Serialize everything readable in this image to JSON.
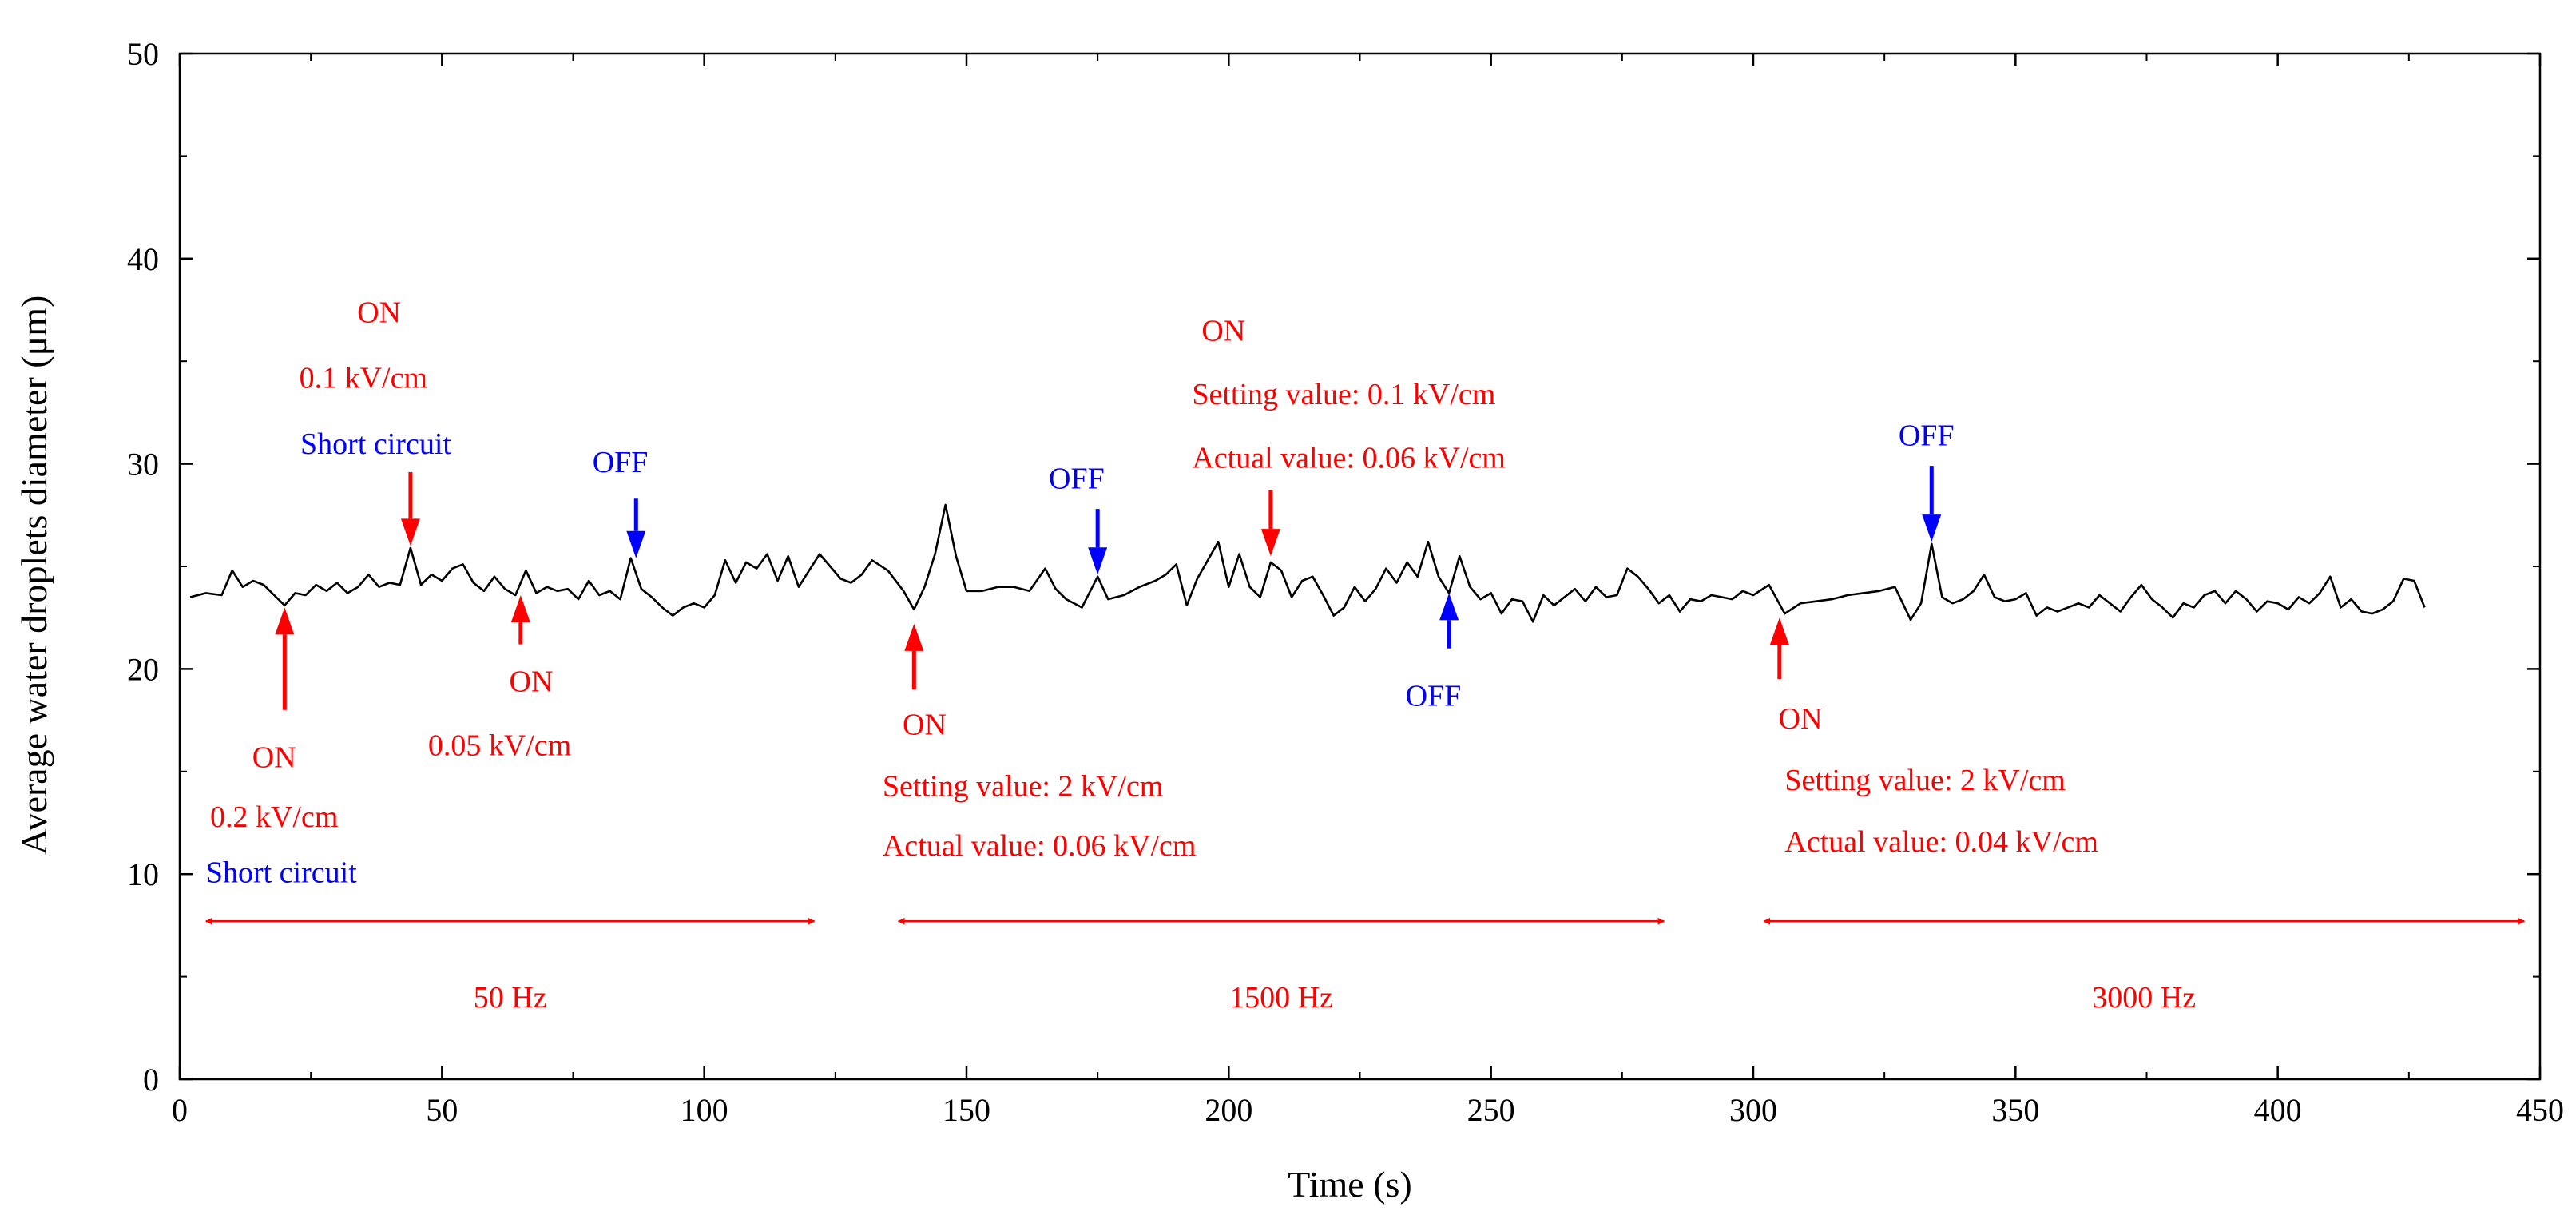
{
  "chart_data": {
    "type": "line",
    "title": "",
    "xlabel": "Time (s)",
    "ylabel": "Average water droplets diameter (μm)",
    "xlim": [
      0,
      450
    ],
    "ylim": [
      0,
      50
    ],
    "xticks": [
      0,
      50,
      100,
      150,
      200,
      250,
      300,
      350,
      400,
      450
    ],
    "yticks": [
      0,
      10,
      20,
      30,
      40,
      50
    ],
    "grid": false,
    "series": [
      {
        "name": "Average water droplets diameter",
        "color": "#000000",
        "points": [
          [
            2,
            23.5
          ],
          [
            5,
            23.7
          ],
          [
            8,
            23.6
          ],
          [
            10,
            24.8
          ],
          [
            12,
            24.0
          ],
          [
            14,
            24.3
          ],
          [
            16,
            24.1
          ],
          [
            18,
            23.6
          ],
          [
            20,
            23.1
          ],
          [
            22,
            23.7
          ],
          [
            24,
            23.6
          ],
          [
            26,
            24.1
          ],
          [
            28,
            23.8
          ],
          [
            30,
            24.2
          ],
          [
            32,
            23.7
          ],
          [
            34,
            24.0
          ],
          [
            36,
            24.6
          ],
          [
            38,
            24.0
          ],
          [
            40,
            24.2
          ],
          [
            42,
            24.1
          ],
          [
            44,
            25.9
          ],
          [
            46,
            24.1
          ],
          [
            48,
            24.6
          ],
          [
            50,
            24.3
          ],
          [
            52,
            24.9
          ],
          [
            54,
            25.1
          ],
          [
            56,
            24.2
          ],
          [
            58,
            23.8
          ],
          [
            60,
            24.5
          ],
          [
            62,
            23.9
          ],
          [
            64,
            23.6
          ],
          [
            66,
            24.8
          ],
          [
            68,
            23.7
          ],
          [
            70,
            24.0
          ],
          [
            72,
            23.8
          ],
          [
            74,
            23.9
          ],
          [
            76,
            23.4
          ],
          [
            78,
            24.3
          ],
          [
            80,
            23.6
          ],
          [
            82,
            23.8
          ],
          [
            84,
            23.4
          ],
          [
            86,
            25.4
          ],
          [
            88,
            23.9
          ],
          [
            90,
            23.5
          ],
          [
            92,
            23.0
          ],
          [
            94,
            22.6
          ],
          [
            96,
            23.0
          ],
          [
            98,
            23.2
          ],
          [
            100,
            23.0
          ],
          [
            102,
            23.6
          ],
          [
            104,
            25.3
          ],
          [
            106,
            24.2
          ],
          [
            108,
            25.2
          ],
          [
            110,
            24.9
          ],
          [
            112,
            25.6
          ],
          [
            114,
            24.3
          ],
          [
            116,
            25.5
          ],
          [
            118,
            24.0
          ],
          [
            120,
            24.8
          ],
          [
            122,
            25.6
          ],
          [
            124,
            25.0
          ],
          [
            126,
            24.4
          ],
          [
            128,
            24.2
          ],
          [
            130,
            24.6
          ],
          [
            132,
            25.3
          ],
          [
            135,
            24.8
          ],
          [
            138,
            23.8
          ],
          [
            140,
            22.9
          ],
          [
            142,
            24.0
          ],
          [
            144,
            25.6
          ],
          [
            146,
            28.0
          ],
          [
            148,
            25.5
          ],
          [
            150,
            23.8
          ],
          [
            153,
            23.8
          ],
          [
            156,
            24.0
          ],
          [
            159,
            24.0
          ],
          [
            162,
            23.8
          ],
          [
            165,
            24.9
          ],
          [
            167,
            23.9
          ],
          [
            169,
            23.4
          ],
          [
            172,
            23.0
          ],
          [
            175,
            24.5
          ],
          [
            177,
            23.4
          ],
          [
            180,
            23.6
          ],
          [
            183,
            24.0
          ],
          [
            186,
            24.3
          ],
          [
            188,
            24.6
          ],
          [
            190,
            25.1
          ],
          [
            192,
            23.1
          ],
          [
            194,
            24.4
          ],
          [
            196,
            25.3
          ],
          [
            198,
            26.2
          ],
          [
            200,
            24.0
          ],
          [
            202,
            25.6
          ],
          [
            204,
            24.0
          ],
          [
            206,
            23.5
          ],
          [
            208,
            25.2
          ],
          [
            210,
            24.8
          ],
          [
            212,
            23.5
          ],
          [
            214,
            24.3
          ],
          [
            216,
            24.5
          ],
          [
            218,
            23.6
          ],
          [
            220,
            22.6
          ],
          [
            222,
            23.0
          ],
          [
            224,
            24.0
          ],
          [
            226,
            23.3
          ],
          [
            228,
            23.9
          ],
          [
            230,
            24.9
          ],
          [
            232,
            24.2
          ],
          [
            234,
            25.2
          ],
          [
            236,
            24.5
          ],
          [
            238,
            26.2
          ],
          [
            240,
            24.5
          ],
          [
            242,
            23.7
          ],
          [
            244,
            25.5
          ],
          [
            246,
            24.0
          ],
          [
            248,
            23.4
          ],
          [
            250,
            23.7
          ],
          [
            252,
            22.7
          ],
          [
            254,
            23.4
          ],
          [
            256,
            23.3
          ],
          [
            258,
            22.3
          ],
          [
            260,
            23.6
          ],
          [
            262,
            23.1
          ],
          [
            264,
            23.5
          ],
          [
            266,
            23.9
          ],
          [
            268,
            23.3
          ],
          [
            270,
            24.0
          ],
          [
            272,
            23.5
          ],
          [
            274,
            23.6
          ],
          [
            276,
            24.9
          ],
          [
            278,
            24.5
          ],
          [
            280,
            23.9
          ],
          [
            282,
            23.2
          ],
          [
            284,
            23.6
          ],
          [
            286,
            22.8
          ],
          [
            288,
            23.4
          ],
          [
            290,
            23.3
          ],
          [
            292,
            23.6
          ],
          [
            294,
            23.5
          ],
          [
            296,
            23.4
          ],
          [
            298,
            23.8
          ],
          [
            300,
            23.6
          ],
          [
            303,
            24.1
          ],
          [
            306,
            22.7
          ],
          [
            309,
            23.2
          ],
          [
            312,
            23.3
          ],
          [
            315,
            23.4
          ],
          [
            318,
            23.6
          ],
          [
            321,
            23.7
          ],
          [
            324,
            23.8
          ],
          [
            327,
            24.0
          ],
          [
            330,
            22.4
          ],
          [
            332,
            23.2
          ],
          [
            334,
            26.1
          ],
          [
            336,
            23.5
          ],
          [
            338,
            23.2
          ],
          [
            340,
            23.4
          ],
          [
            342,
            23.8
          ],
          [
            344,
            24.6
          ],
          [
            346,
            23.5
          ],
          [
            348,
            23.3
          ],
          [
            350,
            23.4
          ],
          [
            352,
            23.7
          ],
          [
            354,
            22.6
          ],
          [
            356,
            23.0
          ],
          [
            358,
            22.8
          ],
          [
            360,
            23.0
          ],
          [
            362,
            23.2
          ],
          [
            364,
            23.0
          ],
          [
            366,
            23.6
          ],
          [
            368,
            23.2
          ],
          [
            370,
            22.8
          ],
          [
            372,
            23.5
          ],
          [
            374,
            24.1
          ],
          [
            376,
            23.4
          ],
          [
            378,
            23.0
          ],
          [
            380,
            22.5
          ],
          [
            382,
            23.2
          ],
          [
            384,
            23.0
          ],
          [
            386,
            23.6
          ],
          [
            388,
            23.8
          ],
          [
            390,
            23.2
          ],
          [
            392,
            23.8
          ],
          [
            394,
            23.4
          ],
          [
            396,
            22.8
          ],
          [
            398,
            23.3
          ],
          [
            400,
            23.2
          ],
          [
            402,
            22.9
          ],
          [
            404,
            23.5
          ],
          [
            406,
            23.2
          ],
          [
            408,
            23.7
          ],
          [
            410,
            24.5
          ],
          [
            412,
            23.0
          ],
          [
            414,
            23.4
          ],
          [
            416,
            22.8
          ],
          [
            418,
            22.7
          ],
          [
            420,
            22.9
          ],
          [
            422,
            23.3
          ],
          [
            424,
            24.4
          ],
          [
            426,
            24.3
          ],
          [
            428,
            23.0
          ]
        ]
      }
    ],
    "arrows": [
      {
        "x": 20,
        "direction": "up",
        "from": 18.0,
        "to": 23.0,
        "color": "#ff0000"
      },
      {
        "x": 44,
        "direction": "down",
        "from": 29.6,
        "to": 26.0,
        "color": "#ff0000"
      },
      {
        "x": 65,
        "direction": "up",
        "from": 21.2,
        "to": 23.6,
        "color": "#ff0000"
      },
      {
        "x": 87,
        "direction": "down",
        "from": 28.3,
        "to": 25.4,
        "color": "#0000ff"
      },
      {
        "x": 140,
        "direction": "up",
        "from": 19.0,
        "to": 22.2,
        "color": "#ff0000"
      },
      {
        "x": 175,
        "direction": "down",
        "from": 27.8,
        "to": 24.6,
        "color": "#0000ff"
      },
      {
        "x": 208,
        "direction": "down",
        "from": 28.7,
        "to": 25.5,
        "color": "#ff0000"
      },
      {
        "x": 242,
        "direction": "up",
        "from": 21.0,
        "to": 23.7,
        "color": "#0000ff"
      },
      {
        "x": 305,
        "direction": "up",
        "from": 19.5,
        "to": 22.5,
        "color": "#ff0000"
      },
      {
        "x": 334,
        "direction": "down",
        "from": 29.9,
        "to": 26.2,
        "color": "#0000ff"
      }
    ],
    "ranges": [
      {
        "from": 5,
        "to": 121,
        "y": 7.7,
        "label": "50 Hz",
        "label_y": 3.5,
        "color": "#ff0000"
      },
      {
        "from": 137,
        "to": 283,
        "y": 7.7,
        "label": "1500 Hz",
        "label_y": 3.5,
        "color": "#ff0000"
      },
      {
        "from": 302,
        "to": 447,
        "y": 7.7,
        "label": "3000 Hz",
        "label_y": 3.5,
        "color": "#ff0000"
      }
    ],
    "annotations": [
      {
        "text": "ON",
        "x": 18,
        "y": 15.2,
        "color": "#ff0000",
        "anchor": "middle"
      },
      {
        "text": "0.2 kV/cm",
        "x": 18,
        "y": 12.3,
        "color": "#ff0000",
        "anchor": "middle"
      },
      {
        "text": "Short circuit",
        "x": 5,
        "y": 9.6,
        "color": "#0000ff",
        "anchor": "start"
      },
      {
        "text": "ON",
        "x": 38,
        "y": 36.9,
        "color": "#ff0000",
        "anchor": "middle"
      },
      {
        "text": "0.1 kV/cm",
        "x": 35,
        "y": 33.7,
        "color": "#ff0000",
        "anchor": "middle"
      },
      {
        "text": "Short circuit",
        "x": 23,
        "y": 30.5,
        "color": "#0000ff",
        "anchor": "start"
      },
      {
        "text": "ON",
        "x": 67,
        "y": 18.9,
        "color": "#ff0000",
        "anchor": "middle"
      },
      {
        "text": "0.05 kV/cm",
        "x": 61,
        "y": 15.8,
        "color": "#ff0000",
        "anchor": "middle"
      },
      {
        "text": "OFF",
        "x": 84,
        "y": 29.6,
        "color": "#0000ff",
        "anchor": "middle"
      },
      {
        "text": "ON",
        "x": 142,
        "y": 16.8,
        "color": "#ff0000",
        "anchor": "middle"
      },
      {
        "text": "Setting value: 2 kV/cm",
        "x": 134,
        "y": 13.8,
        "color": "#ff0000",
        "anchor": "start"
      },
      {
        "text": "Actual value: 0.06 kV/cm",
        "x": 134,
        "y": 10.9,
        "color": "#ff0000",
        "anchor": "start"
      },
      {
        "text": "OFF",
        "x": 171,
        "y": 28.8,
        "color": "#0000ff",
        "anchor": "middle"
      },
      {
        "text": "ON",
        "x": 199,
        "y": 36.0,
        "color": "#ff0000",
        "anchor": "middle"
      },
      {
        "text": "Setting value: 0.1 kV/cm",
        "x": 193,
        "y": 32.9,
        "color": "#ff0000",
        "anchor": "start"
      },
      {
        "text": "Actual value: 0.06 kV/cm",
        "x": 193,
        "y": 29.8,
        "color": "#ff0000",
        "anchor": "start"
      },
      {
        "text": "OFF",
        "x": 239,
        "y": 18.2,
        "color": "#0000ff",
        "anchor": "middle"
      },
      {
        "text": "ON",
        "x": 309,
        "y": 17.1,
        "color": "#ff0000",
        "anchor": "middle"
      },
      {
        "text": "Setting value: 2 kV/cm",
        "x": 306,
        "y": 14.1,
        "color": "#ff0000",
        "anchor": "start"
      },
      {
        "text": "Actual value: 0.04 kV/cm",
        "x": 306,
        "y": 11.1,
        "color": "#ff0000",
        "anchor": "start"
      },
      {
        "text": "OFF",
        "x": 333,
        "y": 30.9,
        "color": "#0000ff",
        "anchor": "middle"
      }
    ]
  }
}
